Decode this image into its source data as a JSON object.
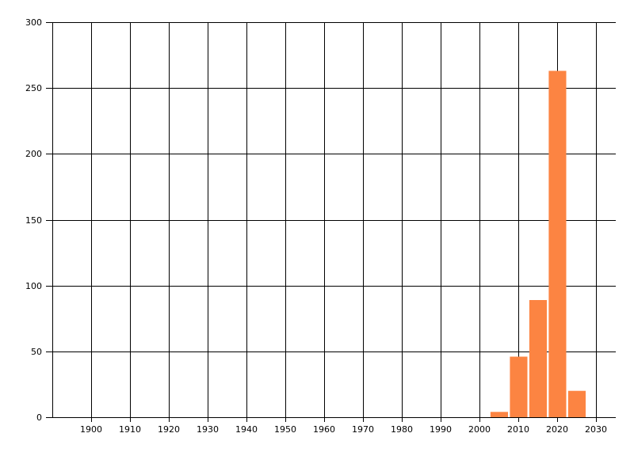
{
  "chart_data": {
    "type": "bar",
    "title": "",
    "xlabel": "",
    "ylabel": "",
    "x": [
      2005,
      2010,
      2015,
      2020,
      2025
    ],
    "values": [
      4,
      46,
      89,
      263,
      20
    ],
    "bar_width_years": 4.5,
    "xlim": [
      1890,
      2035
    ],
    "ylim": [
      0,
      300
    ],
    "x_ticks": [
      1900,
      1910,
      1920,
      1930,
      1940,
      1950,
      1960,
      1970,
      1980,
      1990,
      2000,
      2010,
      2020,
      2030
    ],
    "y_ticks": [
      0,
      50,
      100,
      150,
      200,
      250,
      300
    ],
    "grid": true,
    "legend": false,
    "colors": {
      "bar": "#fc8442",
      "axis": "#000000",
      "grid": "#000000",
      "label": "#000000",
      "background": "#ffffff"
    }
  }
}
